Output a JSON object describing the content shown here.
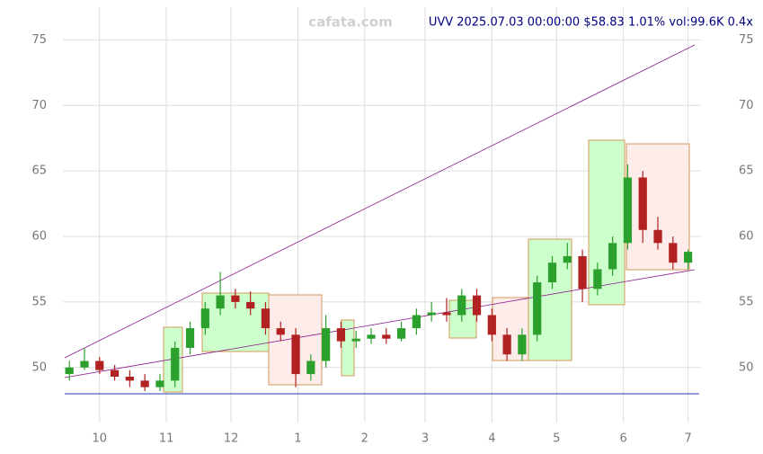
{
  "chart_data": {
    "type": "candlestick",
    "title": "UVV 2025.07.03 00:00:00 $58.83 1.01% vol:99.6K 0.4x",
    "watermark": "cafata.com",
    "grid": true,
    "up_color": "#2ca02c",
    "down_color": "#b22222",
    "xlim": [
      -17,
      279
    ],
    "ylim": [
      45.8,
      77.5
    ],
    "yticks": [
      50,
      55,
      60,
      65,
      70,
      75
    ],
    "xticks": [
      {
        "value": 0,
        "label": "10"
      },
      {
        "value": 31,
        "label": "11"
      },
      {
        "value": 61,
        "label": "12"
      },
      {
        "value": 92,
        "label": "1"
      },
      {
        "value": 123,
        "label": "2"
      },
      {
        "value": 151,
        "label": "3"
      },
      {
        "value": 182,
        "label": "4"
      },
      {
        "value": 212,
        "label": "5"
      },
      {
        "value": 243,
        "label": "6"
      },
      {
        "value": 273,
        "label": "7"
      }
    ],
    "x": [
      -14,
      -7,
      0,
      7,
      14,
      21,
      28,
      35,
      42,
      49,
      56,
      63,
      70,
      77,
      84,
      91,
      98,
      105,
      112,
      119,
      126,
      133,
      140,
      147,
      154,
      161,
      168,
      175,
      182,
      189,
      196,
      203,
      210,
      217,
      224,
      231,
      238,
      245,
      252,
      259,
      266,
      273
    ],
    "open": [
      49.5,
      50,
      50.5,
      49.8,
      49.3,
      49,
      48.5,
      49,
      51.5,
      53,
      54.5,
      55.5,
      55,
      54.5,
      53,
      52.5,
      49.5,
      50.5,
      53,
      52,
      52.2,
      52.5,
      52.2,
      53,
      54,
      54.2,
      54,
      55.5,
      54,
      52.5,
      51,
      52.5,
      56.5,
      58,
      58.5,
      56,
      57.5,
      59.5,
      64.5,
      60.5,
      59.5,
      58
    ],
    "high": [
      50.5,
      51.5,
      50.8,
      50.2,
      49.8,
      49.5,
      49.5,
      52,
      53.5,
      55,
      57.3,
      56,
      55.8,
      55,
      53.5,
      53,
      51,
      54,
      53.5,
      52.8,
      53,
      53,
      53.5,
      54.5,
      55,
      55.3,
      56,
      56,
      54.5,
      53,
      53,
      57,
      58.5,
      59.5,
      59,
      58,
      60,
      65.5,
      65,
      61.5,
      60,
      59
    ],
    "low": [
      49,
      49.8,
      49.5,
      49,
      48.5,
      48.2,
      48.2,
      48.5,
      51,
      52.5,
      54,
      54.5,
      54,
      52.5,
      52,
      48.5,
      49,
      50,
      51.5,
      51.5,
      51.8,
      51.8,
      52,
      52.5,
      53.5,
      53.5,
      53.5,
      53.5,
      52,
      50.5,
      50.5,
      52,
      56,
      57.5,
      55,
      55.5,
      57,
      59,
      59.5,
      59,
      57.5,
      57.5
    ],
    "close": [
      50,
      50.5,
      49.8,
      49.3,
      49,
      48.5,
      49,
      51.5,
      53,
      54.5,
      55.5,
      55,
      54.5,
      53,
      52.5,
      49.5,
      50.5,
      53,
      52,
      52.2,
      52.5,
      52.2,
      53,
      54,
      54.2,
      54,
      55.5,
      54,
      52.5,
      51,
      52.5,
      56.5,
      58,
      58.5,
      56,
      57.5,
      59.5,
      64.5,
      60.5,
      59.5,
      58,
      58.83
    ]
  }
}
